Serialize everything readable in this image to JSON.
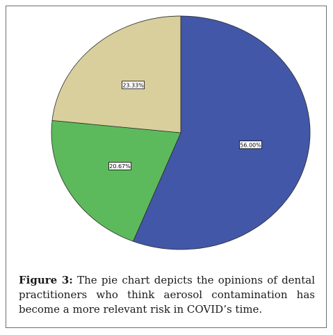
{
  "chart_data": {
    "type": "pie",
    "title": "",
    "start_angle_deg": 0,
    "direction": "clockwise",
    "legend": "none",
    "slices": [
      {
        "label": "56.00%",
        "value": 56.0,
        "color": "#4257a7"
      },
      {
        "label": "20.67%",
        "value": 20.67,
        "color": "#5dba5c"
      },
      {
        "label": "23.33%",
        "value": 23.33,
        "color": "#d8cf9c"
      }
    ]
  },
  "caption": {
    "label": "Figure 3:",
    "text": " The pie chart depicts the opinions of dental practitioners who think aerosol contamination has become a more relevant risk in COVID’s time."
  }
}
